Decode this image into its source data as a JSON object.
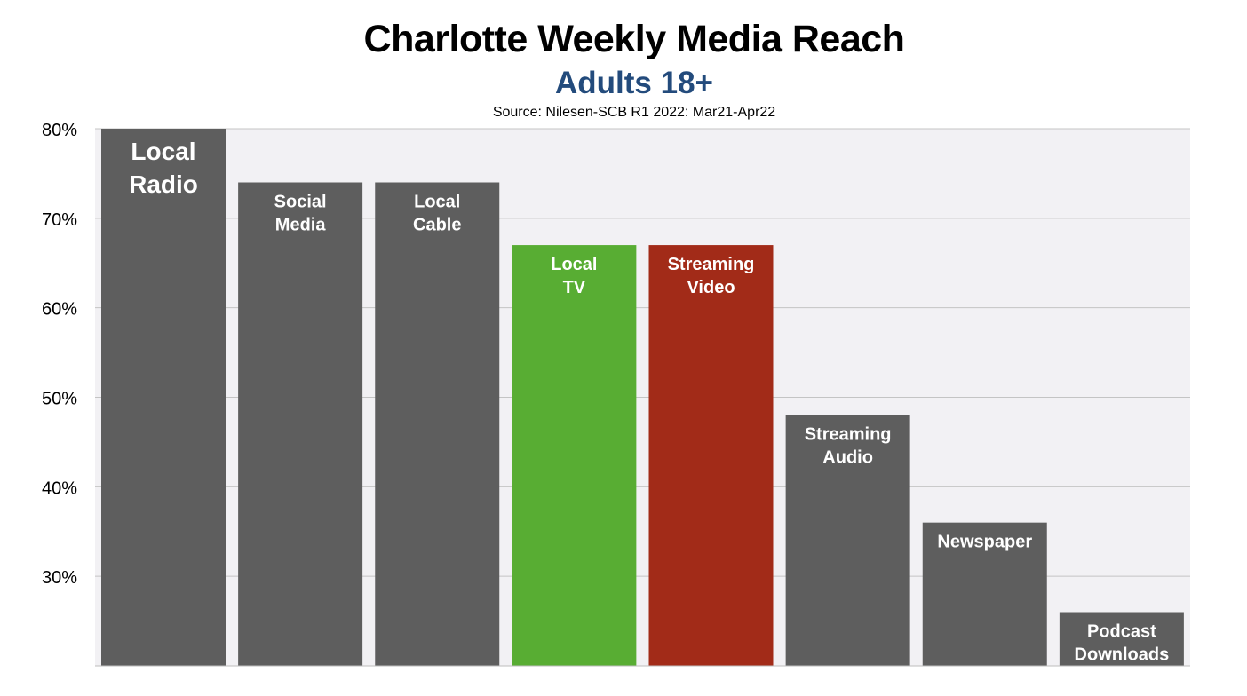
{
  "chart_data": {
    "type": "bar",
    "title": "Charlotte Weekly Media Reach",
    "subtitle": "Adults 18+",
    "source": "Source: Nilesen-SCB R1 2022: Mar21-Apr22",
    "categories": [
      [
        "Local",
        "Radio"
      ],
      [
        "Social",
        "Media"
      ],
      [
        "Local",
        "Cable"
      ],
      [
        "Local",
        "TV"
      ],
      [
        "Streaming",
        "Video"
      ],
      [
        "Streaming",
        "Audio"
      ],
      [
        "Newspaper"
      ],
      [
        "Podcast",
        "Downloads"
      ]
    ],
    "values": [
      80,
      74,
      74,
      67,
      67,
      48,
      36,
      26
    ],
    "bar_colors": [
      "#5e5e5e",
      "#5e5e5e",
      "#5e5e5e",
      "#58ad33",
      "#a22b18",
      "#5e5e5e",
      "#5e5e5e",
      "#5e5e5e"
    ],
    "yticks": [
      "30%",
      "40%",
      "50%",
      "60%",
      "70%",
      "80%"
    ],
    "ytick_values": [
      30,
      40,
      50,
      60,
      70,
      80
    ],
    "ylim": [
      20,
      80
    ],
    "grid": true,
    "subtitle_color": "#234b7c",
    "plot_background": "#f2f1f4",
    "gridline_color": "#c4c4c4"
  }
}
